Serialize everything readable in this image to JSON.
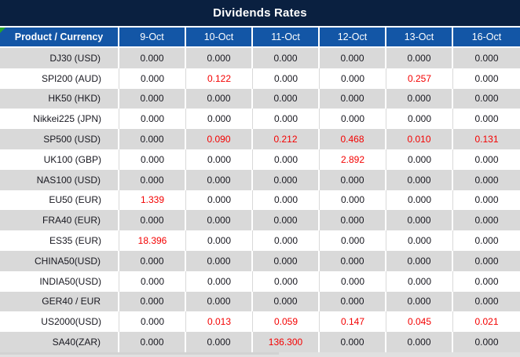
{
  "title": "Dividends Rates",
  "table": {
    "product_header": "Product / Currency",
    "date_columns": [
      "9-Oct",
      "10-Oct",
      "11-Oct",
      "12-Oct",
      "13-Oct",
      "16-Oct"
    ],
    "rows": [
      {
        "product": "DJ30 (USD)",
        "values": [
          "0.000",
          "0.000",
          "0.000",
          "0.000",
          "0.000",
          "0.000"
        ],
        "red": [
          false,
          false,
          false,
          false,
          false,
          false
        ]
      },
      {
        "product": "SPI200 (AUD)",
        "values": [
          "0.000",
          "0.122",
          "0.000",
          "0.000",
          "0.257",
          "0.000"
        ],
        "red": [
          false,
          true,
          false,
          false,
          true,
          false
        ]
      },
      {
        "product": "HK50 (HKD)",
        "values": [
          "0.000",
          "0.000",
          "0.000",
          "0.000",
          "0.000",
          "0.000"
        ],
        "red": [
          false,
          false,
          false,
          false,
          false,
          false
        ]
      },
      {
        "product": "Nikkei225 (JPN)",
        "values": [
          "0.000",
          "0.000",
          "0.000",
          "0.000",
          "0.000",
          "0.000"
        ],
        "red": [
          false,
          false,
          false,
          false,
          false,
          false
        ]
      },
      {
        "product": "SP500 (USD)",
        "values": [
          "0.000",
          "0.090",
          "0.212",
          "0.468",
          "0.010",
          "0.131"
        ],
        "red": [
          false,
          true,
          true,
          true,
          true,
          true
        ]
      },
      {
        "product": "UK100 (GBP)",
        "values": [
          "0.000",
          "0.000",
          "0.000",
          "2.892",
          "0.000",
          "0.000"
        ],
        "red": [
          false,
          false,
          false,
          true,
          false,
          false
        ]
      },
      {
        "product": "NAS100 (USD)",
        "values": [
          "0.000",
          "0.000",
          "0.000",
          "0.000",
          "0.000",
          "0.000"
        ],
        "red": [
          false,
          false,
          false,
          false,
          false,
          false
        ]
      },
      {
        "product": "EU50 (EUR)",
        "values": [
          "1.339",
          "0.000",
          "0.000",
          "0.000",
          "0.000",
          "0.000"
        ],
        "red": [
          true,
          false,
          false,
          false,
          false,
          false
        ]
      },
      {
        "product": "FRA40 (EUR)",
        "values": [
          "0.000",
          "0.000",
          "0.000",
          "0.000",
          "0.000",
          "0.000"
        ],
        "red": [
          false,
          false,
          false,
          false,
          false,
          false
        ]
      },
      {
        "product": "ES35 (EUR)",
        "values": [
          "18.396",
          "0.000",
          "0.000",
          "0.000",
          "0.000",
          "0.000"
        ],
        "red": [
          true,
          false,
          false,
          false,
          false,
          false
        ]
      },
      {
        "product": "CHINA50(USD)",
        "values": [
          "0.000",
          "0.000",
          "0.000",
          "0.000",
          "0.000",
          "0.000"
        ],
        "red": [
          false,
          false,
          false,
          false,
          false,
          false
        ]
      },
      {
        "product": "INDIA50(USD)",
        "values": [
          "0.000",
          "0.000",
          "0.000",
          "0.000",
          "0.000",
          "0.000"
        ],
        "red": [
          false,
          false,
          false,
          false,
          false,
          false
        ]
      },
      {
        "product": "GER40 / EUR",
        "values": [
          "0.000",
          "0.000",
          "0.000",
          "0.000",
          "0.000",
          "0.000"
        ],
        "red": [
          false,
          false,
          false,
          false,
          false,
          false
        ]
      },
      {
        "product": "US2000(USD)",
        "values": [
          "0.000",
          "0.013",
          "0.059",
          "0.147",
          "0.045",
          "0.021"
        ],
        "red": [
          false,
          true,
          true,
          true,
          true,
          true
        ]
      },
      {
        "product": "SA40(ZAR)",
        "values": [
          "0.000",
          "0.000",
          "136.300",
          "0.000",
          "0.000",
          "0.000"
        ],
        "red": [
          false,
          false,
          true,
          false,
          false,
          false
        ]
      }
    ]
  },
  "colors": {
    "title_bg": "#0a2040",
    "header_bg": "#1356a6",
    "stripe_gray": "#d9d9d9",
    "value_text": "#181820",
    "highlight_red": "#f40000",
    "corner_marker_green": "#27a527"
  }
}
